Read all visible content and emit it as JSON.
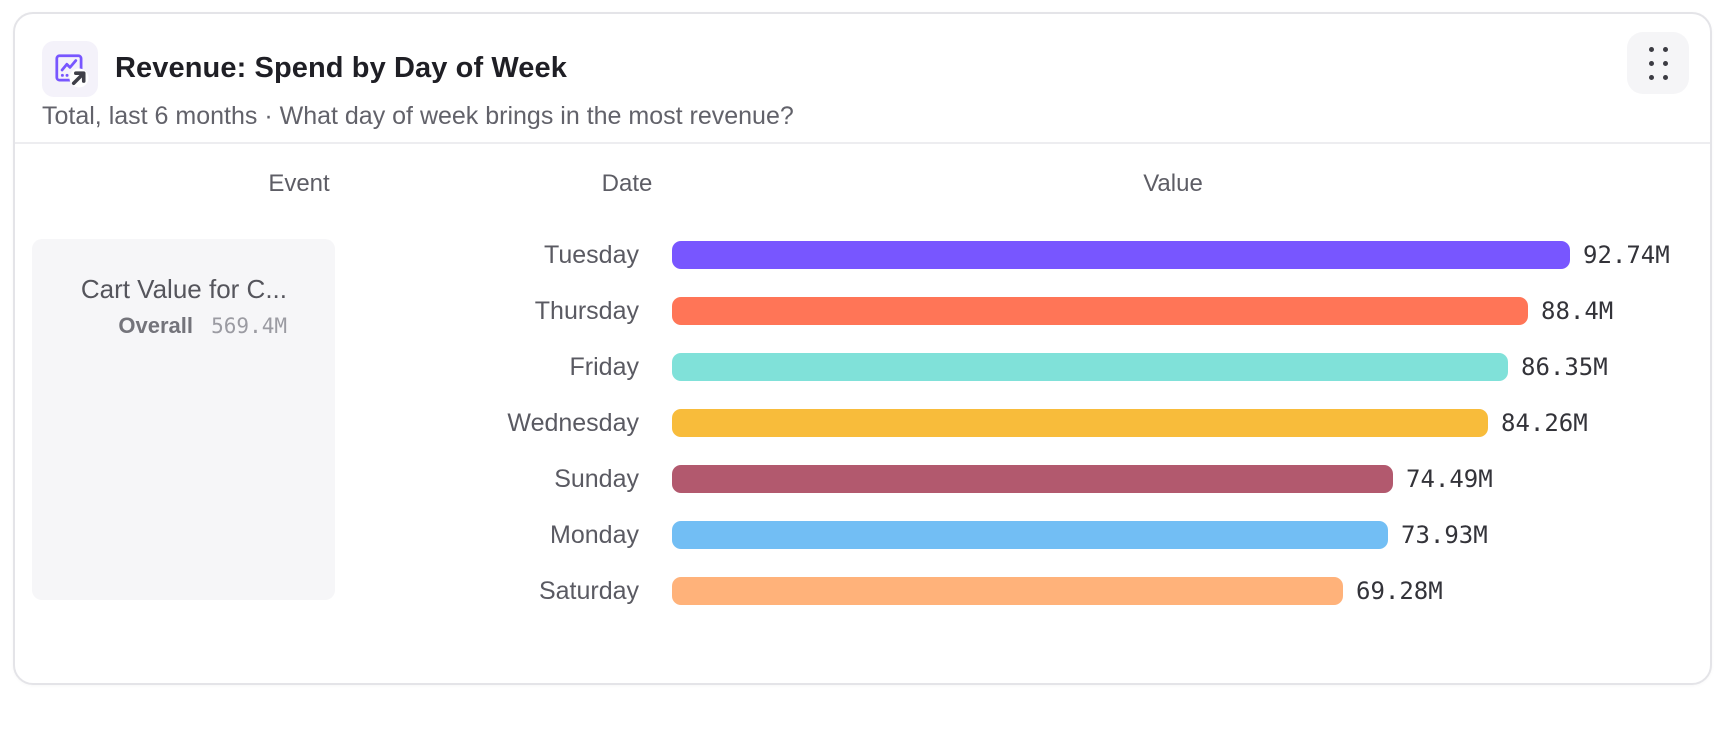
{
  "header": {
    "title": "Revenue: Spend by Day of Week",
    "subtitle": "Total, last 6 months · What day of week brings in the most revenue?"
  },
  "columns": {
    "event": "Event",
    "date": "Date",
    "value": "Value"
  },
  "legend": {
    "event_name": "Cart Value for C...",
    "overall_label": "Overall",
    "overall_value": "569.4M"
  },
  "chart_data": {
    "type": "bar",
    "orientation": "horizontal",
    "title": "Revenue: Spend by Day of Week",
    "series_name": "Cart Value for C...",
    "overall_total_label": "569.4M",
    "categories": [
      "Tuesday",
      "Thursday",
      "Friday",
      "Wednesday",
      "Sunday",
      "Monday",
      "Saturday"
    ],
    "values": [
      92.74,
      88.4,
      86.35,
      84.26,
      74.49,
      73.93,
      69.28
    ],
    "value_labels": [
      "92.74M",
      "88.4M",
      "86.35M",
      "84.26M",
      "74.49M",
      "73.93M",
      "69.28M"
    ],
    "bar_colors": [
      "#7856FF",
      "#FF7557",
      "#80E1D9",
      "#F8BC3B",
      "#B2596E",
      "#72BEF4",
      "#FFB27A"
    ],
    "unit": "M",
    "xlim": [
      0,
      92.74
    ],
    "sorted": "descending",
    "legend_position": "left",
    "grid": false
  },
  "colors": {
    "accent_purple": "#7856FF",
    "card_border": "#e4e4e8",
    "panel_bg": "#f6f6f8",
    "text_dark": "#1f1f25",
    "text_gray": "#5d5d65"
  },
  "icons": {
    "report_icon": "insights-line-chart-with-open-arrow",
    "menu_icon": "six-dot-drag-handle"
  }
}
